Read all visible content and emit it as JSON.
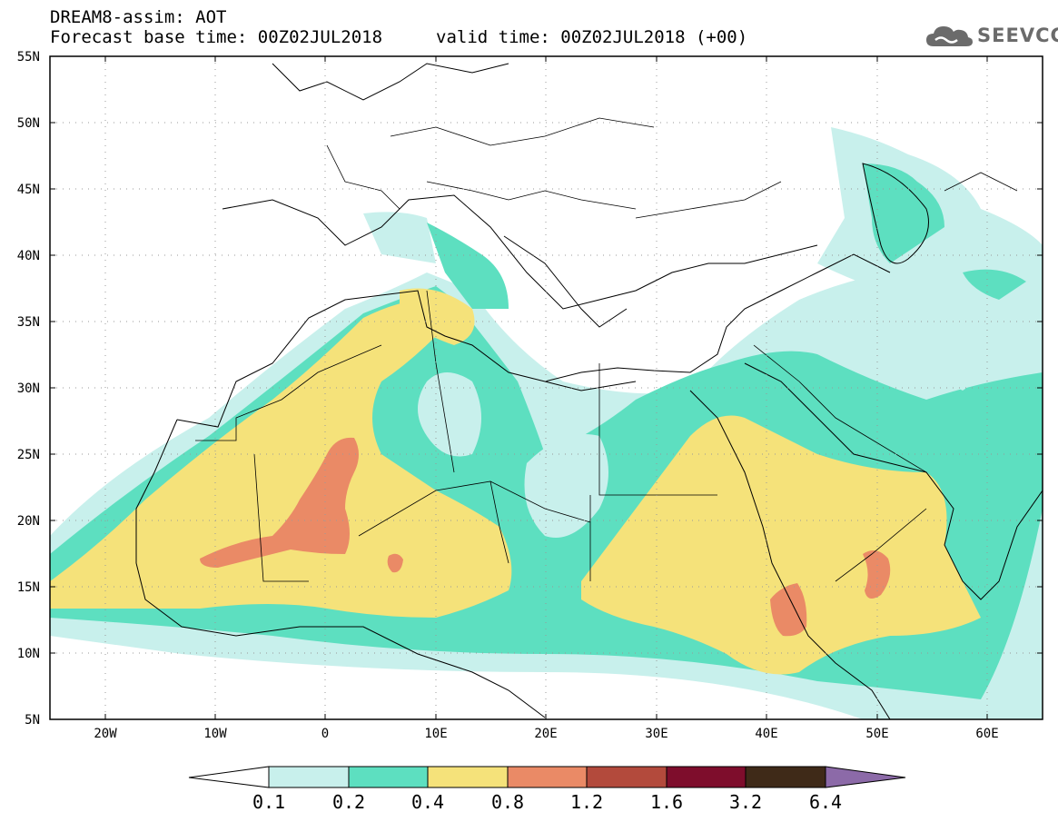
{
  "header": {
    "line1": "DREAM8-assim: AOT",
    "base_label": "Forecast base time: 00Z02JUL2018",
    "valid_label": "valid time: 00Z02JUL2018 (+00)"
  },
  "logo": {
    "text": "SEEVCCC",
    "icon": "cloud-icon"
  },
  "map": {
    "lon_range": [
      -25,
      65
    ],
    "lat_range": [
      5,
      55
    ],
    "lat_ticks": [
      "5N",
      "10N",
      "15N",
      "20N",
      "25N",
      "30N",
      "35N",
      "40N",
      "45N",
      "50N",
      "55N"
    ],
    "lon_ticks": [
      "20W",
      "10W",
      "0",
      "10E",
      "20E",
      "30E",
      "40E",
      "50E",
      "60E"
    ]
  },
  "colorbar": {
    "labels": [
      "0.1",
      "0.2",
      "0.4",
      "0.8",
      "1.2",
      "1.6",
      "3.2",
      "6.4"
    ],
    "colors": [
      "#c8f0ec",
      "#5ddfc0",
      "#f5e27a",
      "#ea8a66",
      "#b34a3c",
      "#7e0d2c",
      "#3f2a18"
    ],
    "under_color": "#ffffff",
    "over_color": "#8c6aa8"
  }
}
